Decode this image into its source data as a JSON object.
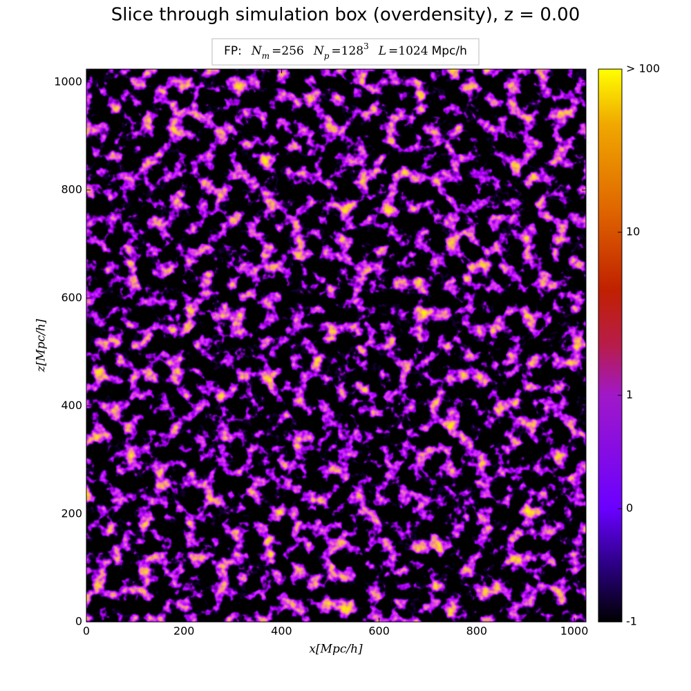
{
  "chart_data": {
    "type": "heatmap",
    "title": "Slice through simulation box (overdensity), z = 0.00",
    "legend": {
      "prefix": "FP:",
      "parameters": [
        {
          "symbol": "N",
          "subscript": "m",
          "value": "=256"
        },
        {
          "symbol": "N",
          "subscript": "p",
          "value": "=128",
          "superscript": "3"
        },
        {
          "symbol": "L",
          "value": "=1024",
          "unit": "Mpc/h"
        }
      ]
    },
    "x_label": "x[Mpc/h]",
    "y_label": "z[Mpc/h]",
    "xlim": [
      0,
      1024
    ],
    "ylim": [
      0,
      1024
    ],
    "xticks": [
      0,
      200,
      400,
      600,
      800,
      1000
    ],
    "yticks": [
      0,
      200,
      400,
      600,
      800,
      1000
    ],
    "colorbar": {
      "scale": "symlog",
      "linthresh": 1,
      "lim": [
        -1,
        100
      ],
      "ticks": [
        -1,
        0,
        1,
        10,
        {
          "value": 100,
          "label": "> 100"
        }
      ]
    }
  }
}
